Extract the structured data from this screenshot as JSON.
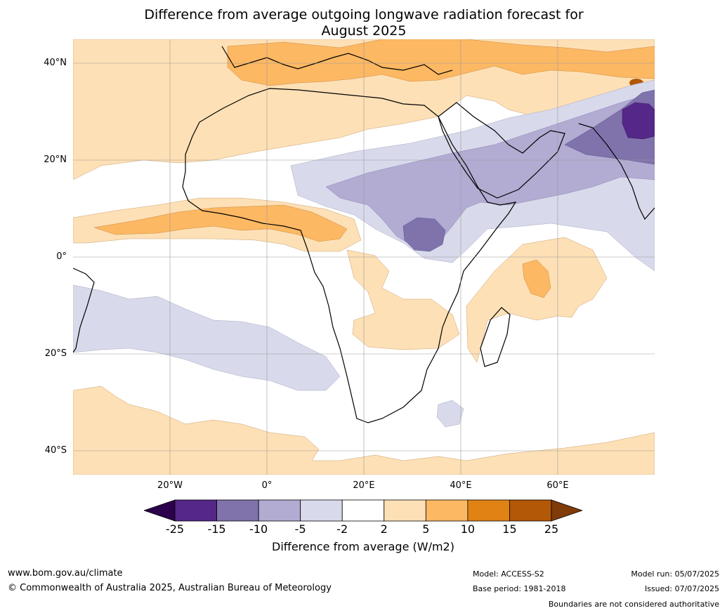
{
  "title_line1": "Difference from average outgoing longwave radiation forecast for",
  "title_line2": "August 2025",
  "lat_labels": [
    "40°N",
    "20°N",
    "0°",
    "20°S",
    "40°S"
  ],
  "lon_labels": [
    "20°W",
    "0°",
    "20°E",
    "40°E",
    "60°E"
  ],
  "colorbar": {
    "ticks": [
      "-25",
      "-15",
      "-10",
      "-5",
      "-2",
      "2",
      "5",
      "10",
      "15",
      "25"
    ],
    "colors": {
      "below_min": "#2d004b",
      "bins": [
        "#542788",
        "#8073ac",
        "#b2abd2",
        "#d8daeb",
        "#ffffff",
        "#fee0b6",
        "#fdb863",
        "#e08214",
        "#b35806"
      ],
      "above_max": "#7f3b08"
    },
    "title": "Difference from average (W/m2)"
  },
  "footer": {
    "url": "www.bom.gov.au/climate",
    "copyright": "© Commonwealth of Australia 2025, Australian Bureau of Meteorology",
    "model": "Model: ACCESS-S2",
    "base_period": "Base period: 1981-2018",
    "model_run": "Model run: 05/07/2025",
    "issued": "Issued: 07/07/2025",
    "disclaimer": "Boundaries are not considered authoritative"
  }
}
